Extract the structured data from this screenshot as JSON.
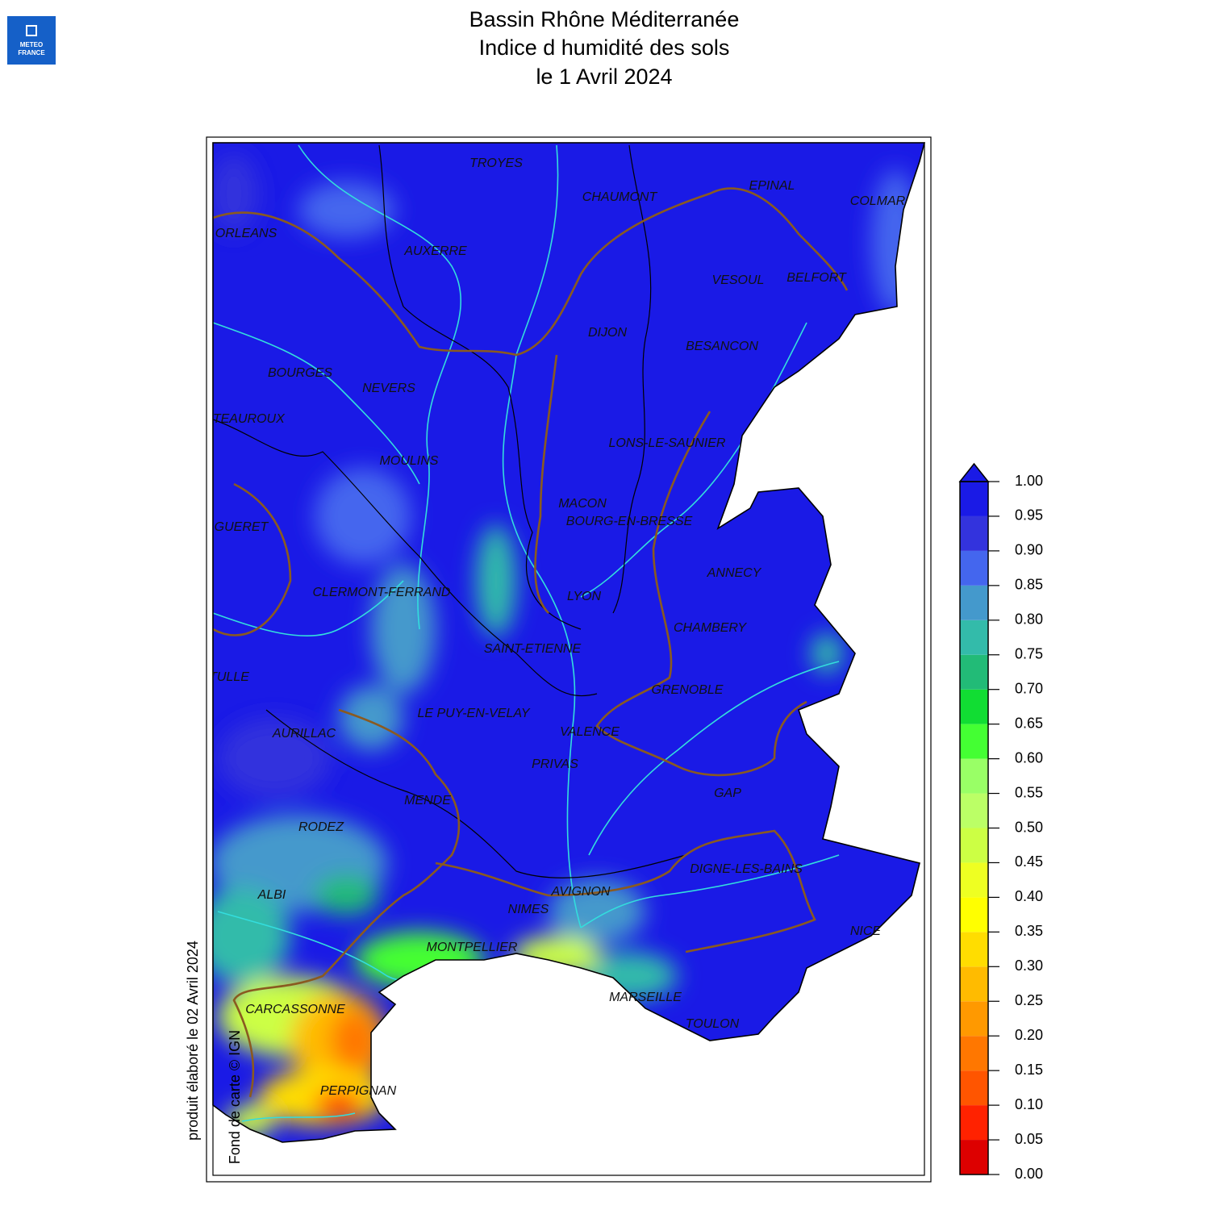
{
  "header": {
    "title_lines": [
      "Bassin Rhône Méditerranée",
      "Indice d humidité des sols",
      "le 1 Avril 2024"
    ],
    "logo": [
      "METEO",
      "FRANCE"
    ]
  },
  "map": {
    "cities": [
      "TROYES",
      "CHAUMONT",
      "EPINAL",
      "COLMAR",
      "ORLEANS",
      "AUXERRE",
      "VESOUL",
      "BELFORT",
      "DIJON",
      "BESANCON",
      "BOURGES",
      "NEVERS",
      "CHATEAUROUX",
      "LONS-LE-SAUNIER",
      "MOULINS",
      "MACON",
      "BOURG-EN-BRESSE",
      "GUERET",
      "ANNECY",
      "CLERMONT-FERRAND",
      "LYON",
      "CHAMBERY",
      "SAINT-ETIENNE",
      "TULLE",
      "GRENOBLE",
      "LE PUY-EN-VELAY",
      "AURILLAC",
      "VALENCE",
      "PRIVAS",
      "GAP",
      "MENDE",
      "RODEZ",
      "DIGNE-LES-BAINS",
      "ALBI",
      "AVIGNON",
      "NIMES",
      "NICE",
      "MONTPELLIER",
      "MARSEILLE",
      "CARCASSONNE",
      "TOULON",
      "PERPIGNAN"
    ]
  },
  "colorbar": {
    "ticks": [
      {
        "value": 0,
        "label": "0.00"
      },
      {
        "value": 0.05,
        "label": "0.05"
      },
      {
        "value": 0.1,
        "label": "0.10"
      },
      {
        "value": 0.15,
        "label": "0.15"
      },
      {
        "value": 0.2,
        "label": "0.20"
      },
      {
        "value": 0.25,
        "label": "0.25"
      },
      {
        "value": 0.3,
        "label": "0.30"
      },
      {
        "value": 0.35,
        "label": "0.35"
      },
      {
        "value": 0.4,
        "label": "0.40"
      },
      {
        "value": 0.45,
        "label": "0.45"
      },
      {
        "value": 0.5,
        "label": "0.50"
      },
      {
        "value": 0.55,
        "label": "0.55"
      },
      {
        "value": 0.6,
        "label": "0.60"
      },
      {
        "value": 0.65,
        "label": "0.65"
      },
      {
        "value": 0.7,
        "label": "0.70"
      },
      {
        "value": 0.75,
        "label": "0.75"
      },
      {
        "value": 0.8,
        "label": "0.80"
      },
      {
        "value": 0.85,
        "label": "0.85"
      },
      {
        "value": 0.9,
        "label": "0.90"
      },
      {
        "value": 0.95,
        "label": "0.95"
      },
      {
        "value": 1,
        "label": "1.00"
      }
    ],
    "colors": [
      "#dd0000",
      "#ff2200",
      "#ff5500",
      "#ff7700",
      "#ff9900",
      "#ffbb00",
      "#ffdd00",
      "#ffff00",
      "#eeff22",
      "#ccff44",
      "#bbff66",
      "#99ff66",
      "#44ff33",
      "#11dd33",
      "#22bb77",
      "#33bbaa",
      "#4499cc",
      "#4466ee",
      "#3333dd",
      "#1a1ae6"
    ]
  },
  "footer": {
    "production": "produit élaboré le 02 Avril 2024",
    "credit": "Fond de carte © IGN"
  }
}
